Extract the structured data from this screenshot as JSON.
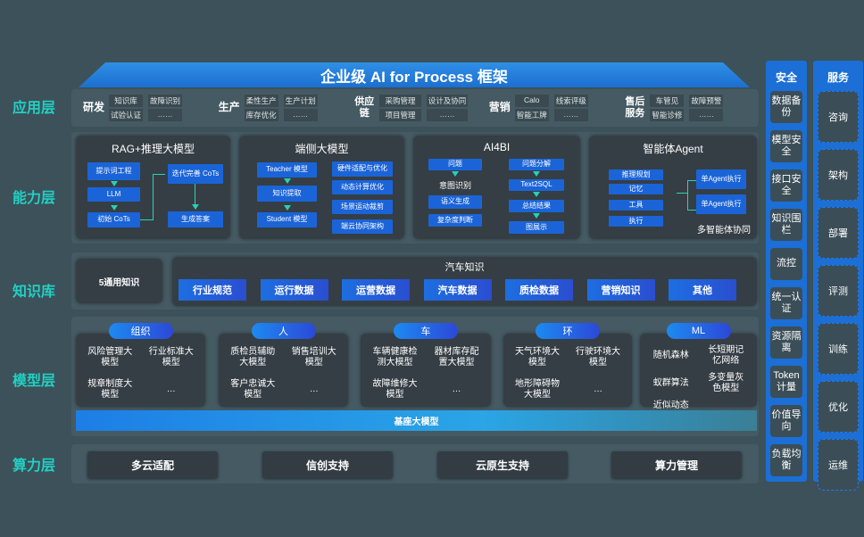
{
  "title": "企业级 AI for Process 框架",
  "layers": {
    "app": "应用层",
    "capability": "能力层",
    "knowledge": "知识库",
    "model": "模型层",
    "compute": "算力层"
  },
  "app_layer": [
    {
      "name": "研发",
      "items": [
        "知识库",
        "故障识别",
        "试验认证",
        "……"
      ]
    },
    {
      "name": "生产",
      "items": [
        "柔性生产",
        "生产计划",
        "库存优化",
        "……"
      ]
    },
    {
      "name": "供应链",
      "items": [
        "采购管理",
        "设计及协同",
        "项目管理",
        "……"
      ]
    },
    {
      "name": "营销",
      "items": [
        "Calo",
        "线索评级",
        "智能工牌",
        "……"
      ]
    },
    {
      "name": "售后服务",
      "items": [
        "车管见",
        "故障预警",
        "智能诊修",
        "……"
      ]
    }
  ],
  "capability": {
    "rag": {
      "title": "RAG+推理大模型",
      "steps": [
        "提示词工程",
        "LLM",
        "初始 CoTs",
        "迭代完善 CoTs",
        "生成答案"
      ]
    },
    "edge": {
      "title": "端侧大模型",
      "flow": [
        "Teacher 模型",
        "知识提取",
        "Student 模型"
      ],
      "features": [
        "硬件适配与优化",
        "动态计算优化",
        "场景运动裁剪",
        "端云协同架构"
      ]
    },
    "ai4bi": {
      "title": "AI4BI",
      "left": [
        "问题",
        "意图识别",
        "语义生成",
        "复杂度判断"
      ],
      "right": [
        "问题分解",
        "Text2SQL",
        "总结结果",
        "图展示"
      ]
    },
    "agent": {
      "title": "智能体Agent",
      "modules": [
        "推理规划",
        "记忆",
        "工具",
        "执行"
      ],
      "executors": [
        "单Agent执行",
        "单Agent执行"
      ],
      "footer": "多智能体协同"
    }
  },
  "knowledge": {
    "general": "5通用知识",
    "auto_title": "汽车知识",
    "auto_items": [
      "行业规范",
      "运行数据",
      "运营数据",
      "汽车数据",
      "质检数据",
      "营销知识",
      "其他"
    ]
  },
  "model_layer": {
    "groups": [
      {
        "name": "组织",
        "items": [
          "风险管理大模型",
          "行业标准大模型",
          "规章制度大模型",
          "…"
        ]
      },
      {
        "name": "人",
        "items": [
          "质检员辅助大模型",
          "销售培训大模型",
          "客户忠诚大模型",
          "…"
        ]
      },
      {
        "name": "车",
        "items": [
          "车辆健康检测大模型",
          "器材库存配置大模型",
          "故障维修大模型",
          "…"
        ]
      },
      {
        "name": "环",
        "items": [
          "天气环境大模型",
          "行驶环境大模型",
          "地形障碍物大模型",
          "…"
        ]
      },
      {
        "name": "ML",
        "items": [
          "随机森林",
          "长短期记忆网络",
          "蚁群算法",
          "多变量灰色模型",
          "近似动态规划",
          "…"
        ]
      }
    ],
    "base": "基座大模型"
  },
  "compute": [
    "多云适配",
    "信创支持",
    "云原生支持",
    "算力管理"
  ],
  "security": {
    "title": "安全",
    "items": [
      "数据备份",
      "模型安全",
      "接口安全",
      "知识围栏",
      "流控",
      "统一认证",
      "资源隔离",
      "Token计量",
      "价值导向",
      "负载均衡"
    ]
  },
  "services": {
    "title": "服务",
    "items": [
      "咨询",
      "架构",
      "部署",
      "评测",
      "训练",
      "优化",
      "运维"
    ]
  },
  "colors": {
    "background": "#3c5159",
    "accent_blue": "#1b64d8",
    "layer_label": "#22d0c4",
    "panel": "#353e44"
  }
}
